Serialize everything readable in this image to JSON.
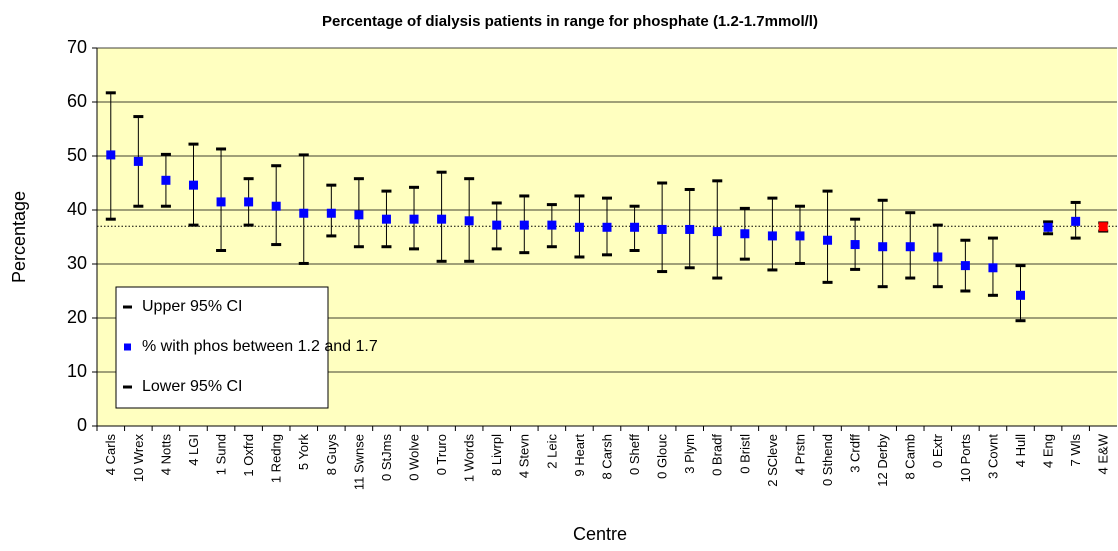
{
  "chart_data": {
    "type": "errorbar",
    "title": "Percentage of dialysis patients in range for phosphate (1.2-1.7mmol/l)",
    "x_label": "Centre",
    "y_label": "Percentage",
    "categories": [
      "4 Carls",
      "10 Wrex",
      "4 Notts",
      "4 LGI",
      "1 Sund",
      "1 Oxfrd",
      "1 Redng",
      "5 York",
      "8 Guys",
      "11 Swnse",
      "0 StJms",
      "0 Wolve",
      "0 Truro",
      "1 Words",
      "8 Livrpl",
      "4 Stevn",
      "2 Leic",
      "9 Heart",
      "8 Carsh",
      "0 Sheff",
      "0 Glouc",
      "3 Plym",
      "0 Bradf",
      "0 Bristl",
      "2 SCleve",
      "4 Prstn",
      "0 Sthend",
      "3 Crdff",
      "12 Derby",
      "8 Camb",
      "0 Extr",
      "10 Ports",
      "3 Covnt",
      "4 Hull",
      "4 Eng",
      "7 Wls",
      "4 E&W"
    ],
    "series": [
      {
        "name": "Upper 95% CI",
        "color": "#000000",
        "values": [
          61.7,
          57.3,
          50.3,
          52.2,
          51.3,
          45.8,
          48.2,
          50.2,
          44.6,
          45.8,
          43.5,
          44.2,
          47.0,
          45.8,
          41.3,
          42.6,
          41.0,
          42.6,
          42.2,
          40.7,
          45.0,
          43.8,
          45.4,
          40.3,
          42.2,
          40.7,
          43.5,
          38.3,
          41.8,
          39.5,
          37.2,
          34.4,
          34.8,
          29.7,
          37.8,
          41.4,
          37.6
        ]
      },
      {
        "name": "% with phos between 1.2 and 1.7",
        "color": "#0000ff",
        "values": [
          50.2,
          49.0,
          45.5,
          44.6,
          41.5,
          41.5,
          40.7,
          39.4,
          39.4,
          39.1,
          38.3,
          38.3,
          38.3,
          38.0,
          37.2,
          37.2,
          37.2,
          36.8,
          36.8,
          36.8,
          36.4,
          36.4,
          36.0,
          35.6,
          35.2,
          35.2,
          34.4,
          33.6,
          33.2,
          33.2,
          31.3,
          29.7,
          29.3,
          24.2,
          36.8,
          37.9,
          36.9
        ],
        "point_colors": [
          "#0000ff",
          "#0000ff",
          "#0000ff",
          "#0000ff",
          "#0000ff",
          "#0000ff",
          "#0000ff",
          "#0000ff",
          "#0000ff",
          "#0000ff",
          "#0000ff",
          "#0000ff",
          "#0000ff",
          "#0000ff",
          "#0000ff",
          "#0000ff",
          "#0000ff",
          "#0000ff",
          "#0000ff",
          "#0000ff",
          "#0000ff",
          "#0000ff",
          "#0000ff",
          "#0000ff",
          "#0000ff",
          "#0000ff",
          "#0000ff",
          "#0000ff",
          "#0000ff",
          "#0000ff",
          "#0000ff",
          "#0000ff",
          "#0000ff",
          "#0000ff",
          "#0000ff",
          "#0000ff",
          "#ff0000"
        ]
      },
      {
        "name": "Lower 95% CI",
        "color": "#000000",
        "values": [
          38.3,
          40.7,
          40.7,
          37.2,
          32.5,
          37.2,
          33.6,
          30.1,
          35.2,
          33.2,
          33.2,
          32.8,
          30.5,
          30.5,
          32.8,
          32.1,
          33.2,
          31.3,
          31.7,
          32.5,
          28.6,
          29.3,
          27.4,
          30.9,
          28.9,
          30.1,
          26.6,
          29.0,
          25.8,
          27.4,
          25.8,
          25.0,
          24.2,
          19.5,
          35.6,
          34.8,
          36.1
        ]
      }
    ],
    "reference_line": 37.0,
    "ylim": [
      0,
      70
    ],
    "yticks": [
      0,
      10,
      20,
      30,
      40,
      50,
      60,
      70
    ],
    "grid": true,
    "plot_background": "#ffffc0"
  }
}
